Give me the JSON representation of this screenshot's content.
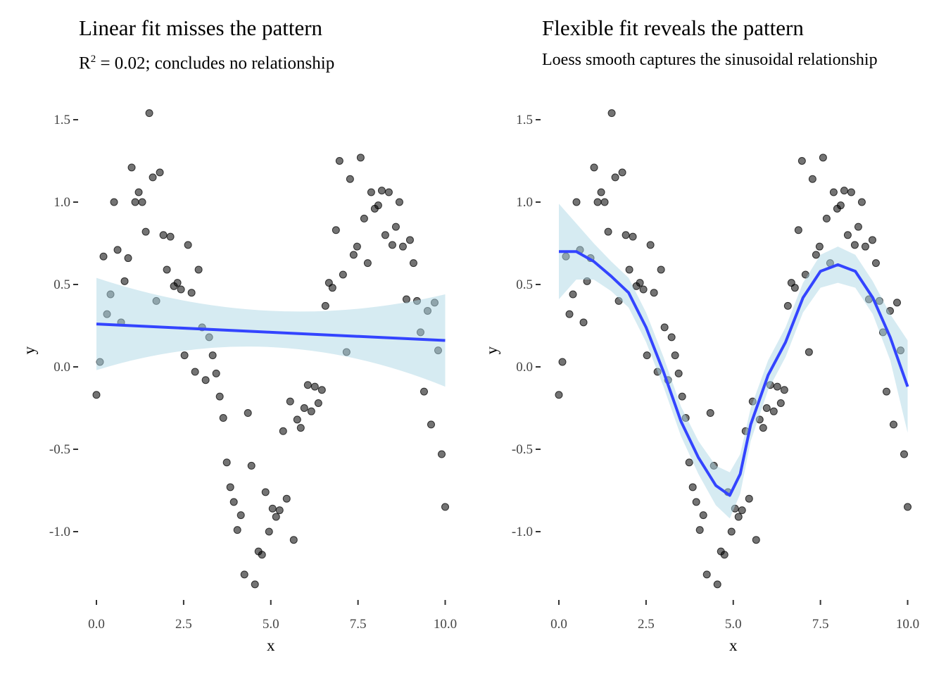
{
  "chart_data": [
    {
      "type": "scatter",
      "title": "Linear fit misses the pattern",
      "subtitle_prefix": "R",
      "subtitle_sup": "2",
      "subtitle_rest": " = 0.02; concludes no relationship",
      "xlabel": "x",
      "ylabel": "y",
      "xlim": [
        0,
        10
      ],
      "ylim": [
        -1.4,
        1.6
      ],
      "xticks": [
        0,
        2.5,
        5,
        7.5,
        10
      ],
      "xtick_labels": [
        "0.0",
        "2.5",
        "5.0",
        "7.5",
        "10.0"
      ],
      "yticks": [
        -1,
        -0.5,
        0,
        0.5,
        1,
        1.5
      ],
      "ytick_labels": [
        "-1.0",
        "-0.5",
        "0.0",
        "0.5",
        "1.0",
        "1.5"
      ],
      "grid": false,
      "fit": {
        "method": "linear",
        "x": [
          0,
          5,
          10
        ],
        "y": [
          0.26,
          0.21,
          0.16
        ],
        "lower": [
          -0.02,
          0.12,
          -0.12
        ],
        "upper": [
          0.54,
          0.34,
          0.44
        ]
      },
      "line_color": "#3344ff",
      "band_color": "#add8e6"
    },
    {
      "type": "scatter",
      "title": "Flexible fit reveals the pattern",
      "subtitle": "Loess smooth captures the sinusoidal relationship",
      "xlabel": "x",
      "ylabel": "y",
      "xlim": [
        0,
        10
      ],
      "ylim": [
        -1.4,
        1.6
      ],
      "xticks": [
        0,
        2.5,
        5,
        7.5,
        10
      ],
      "xtick_labels": [
        "0.0",
        "2.5",
        "5.0",
        "7.5",
        "10.0"
      ],
      "yticks": [
        -1,
        -0.5,
        0,
        0.5,
        1,
        1.5
      ],
      "ytick_labels": [
        "-1.0",
        "-0.5",
        "0.0",
        "0.5",
        "1.0",
        "1.5"
      ],
      "grid": false,
      "fit": {
        "method": "loess",
        "x": [
          0,
          0.5,
          1,
          1.5,
          2,
          2.5,
          3,
          3.5,
          4,
          4.5,
          4.9,
          5.2,
          5.5,
          6,
          6.5,
          7,
          7.5,
          8,
          8.5,
          9,
          9.5,
          10
        ],
        "y": [
          0.7,
          0.7,
          0.64,
          0.55,
          0.45,
          0.24,
          -0.03,
          -0.33,
          -0.55,
          -0.72,
          -0.78,
          -0.65,
          -0.35,
          -0.05,
          0.15,
          0.42,
          0.58,
          0.62,
          0.58,
          0.42,
          0.18,
          -0.12
        ],
        "se": [
          0.29,
          0.17,
          0.11,
          0.09,
          0.09,
          0.09,
          0.09,
          0.09,
          0.1,
          0.12,
          0.14,
          0.12,
          0.1,
          0.09,
          0.09,
          0.09,
          0.1,
          0.11,
          0.1,
          0.1,
          0.14,
          0.28
        ]
      },
      "line_color": "#3344ff",
      "band_color": "#add8e6"
    }
  ],
  "points_y": [
    -0.17,
    0.03,
    0.67,
    0.32,
    0.44,
    1.0,
    0.71,
    0.27,
    0.52,
    0.66,
    1.21,
    1.0,
    1.06,
    1.0,
    0.82,
    1.54,
    1.15,
    0.4,
    1.18,
    0.8,
    0.59,
    0.79,
    0.49,
    0.51,
    0.47,
    0.07,
    0.74,
    0.45,
    -0.03,
    0.59,
    0.24,
    -0.08,
    0.18,
    0.07,
    -0.04,
    -0.18,
    -0.31,
    -0.58,
    -0.73,
    -0.82,
    -0.99,
    -0.9,
    -1.26,
    -0.28,
    -0.6,
    -1.32,
    -1.12,
    -1.14,
    -0.76,
    -1.0,
    -0.86,
    -0.91,
    -0.87,
    -0.39,
    -0.8,
    -0.21,
    -1.05,
    -0.32,
    -0.37,
    -0.25,
    -0.11,
    -0.27,
    -0.12,
    -0.22,
    -0.14,
    0.37,
    0.51,
    0.48,
    0.83,
    1.25,
    0.56,
    0.09,
    1.14,
    0.68,
    0.73,
    1.27,
    0.9,
    0.63,
    1.06,
    0.96,
    0.98,
    1.07,
    0.8,
    1.06,
    0.74,
    0.85,
    1.0,
    0.73,
    0.41,
    0.77,
    0.63,
    0.4,
    0.21,
    -0.15,
    0.34,
    -0.35,
    0.39,
    0.1,
    -0.53,
    -0.85
  ],
  "points_x_range": [
    0,
    10
  ]
}
